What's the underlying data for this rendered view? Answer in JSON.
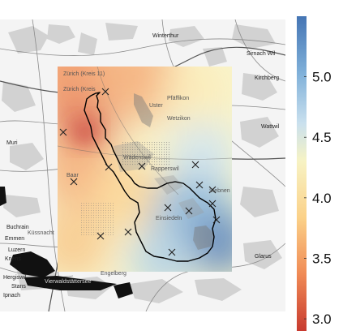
{
  "map": {
    "labels": [
      {
        "text": "Winterthur"
      },
      {
        "text": "Sirnach Wil"
      },
      {
        "text": "Kirchberg"
      },
      {
        "text": "Zürich (Kreis 11)"
      },
      {
        "text": "Zürich (Kreis"
      },
      {
        "text": "Pfäffikon"
      },
      {
        "text": "Uster"
      },
      {
        "text": "Wetzikon"
      },
      {
        "text": "Wattwil"
      },
      {
        "text": "Muri"
      },
      {
        "text": "Buchrain"
      },
      {
        "text": "Emmen"
      },
      {
        "text": "Luzern"
      },
      {
        "text": "Kriens"
      },
      {
        "text": "Hergiswil"
      },
      {
        "text": "Vierwaldstättersee"
      },
      {
        "text": "Stans"
      },
      {
        "text": "Ipnach"
      },
      {
        "text": "Engelberg"
      },
      {
        "text": "Glarus"
      },
      {
        "text": "Einsiedeln"
      },
      {
        "text": "Küssnacht"
      },
      {
        "text": "Baar"
      },
      {
        "text": "Wädenswil"
      },
      {
        "text": "Siebnen"
      },
      {
        "text": "Rapperswil"
      }
    ],
    "station_markers": 15
  },
  "colorbar": {
    "ticks": [
      "5.0",
      "4.5",
      "4.0",
      "3.5",
      "3.0"
    ],
    "min": 2.9,
    "max": 5.5,
    "colors": [
      "#c83a2f",
      "#f08a55",
      "#fbd188",
      "#f7f3c4",
      "#c9e0ee",
      "#7fb0d9",
      "#4575b4"
    ]
  }
}
